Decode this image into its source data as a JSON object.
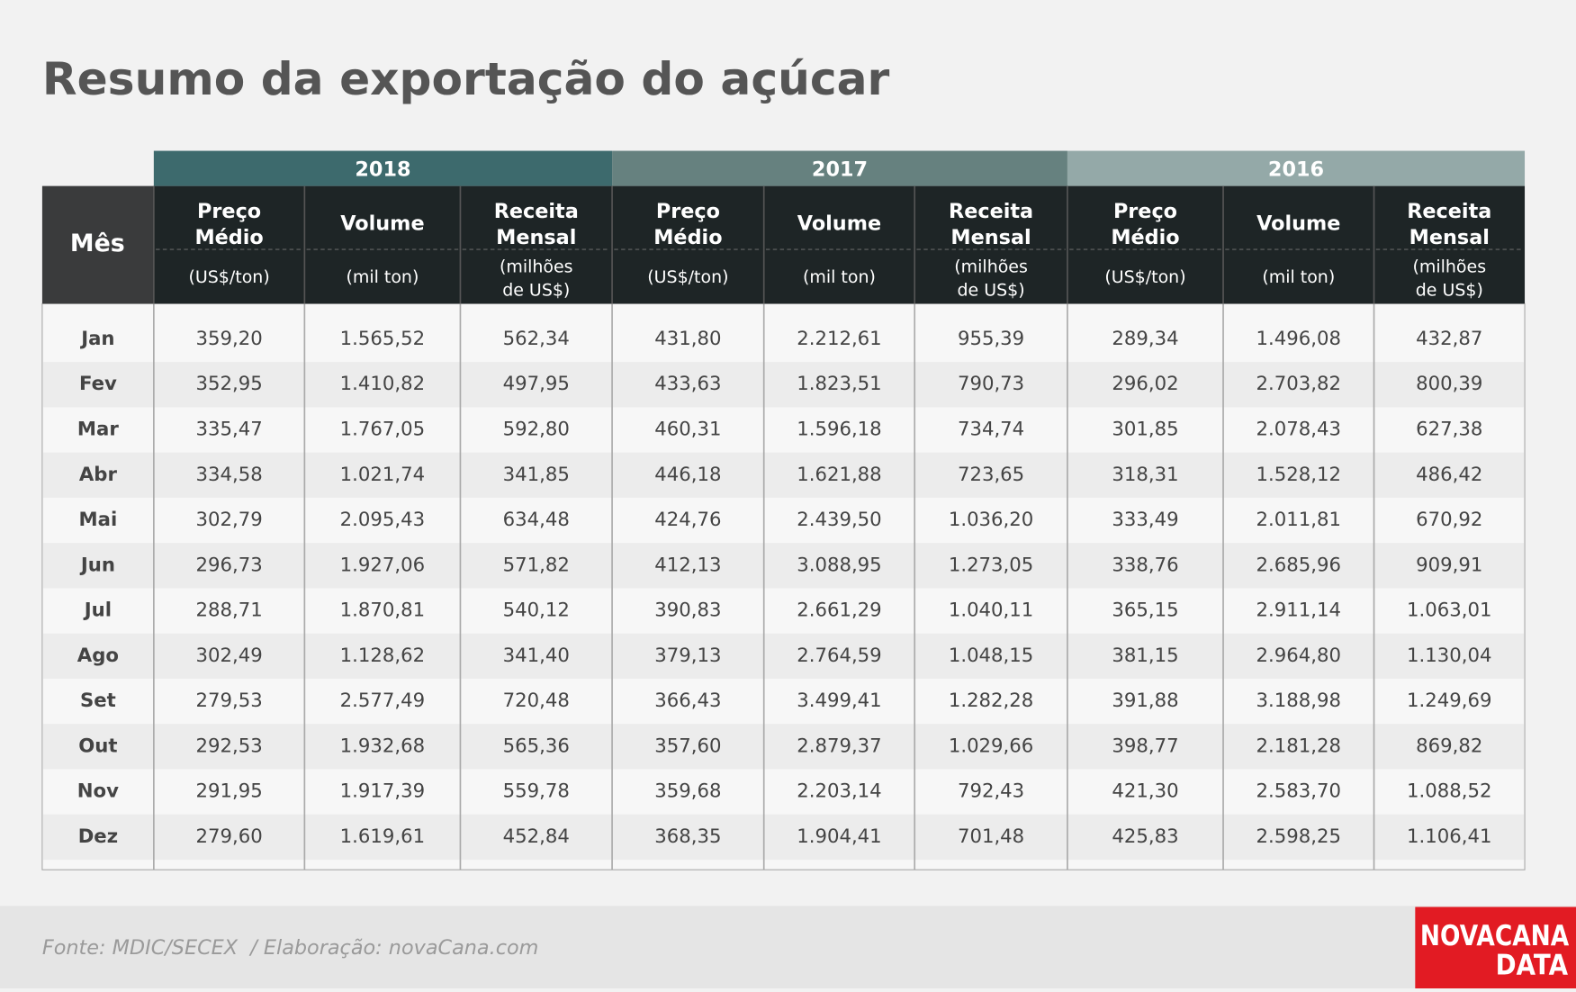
{
  "title": "Resumo da exportação do açúcar",
  "table": {
    "month_header": "Mês",
    "years": [
      "2018",
      "2017",
      "2016"
    ],
    "columns": [
      {
        "name": [
          "Preço",
          "Médio"
        ],
        "unit": [
          "(US$/ton)"
        ]
      },
      {
        "name": [
          "Volume"
        ],
        "unit": [
          "(mil ton)"
        ]
      },
      {
        "name": [
          "Receita",
          "Mensal"
        ],
        "unit": [
          "(milhões",
          "de US$)"
        ]
      }
    ],
    "rows": [
      [
        "Jan",
        "359,20",
        "1.565,52",
        "562,34",
        "431,80",
        "2.212,61",
        "955,39",
        "289,34",
        "1.496,08",
        "432,87"
      ],
      [
        "Fev",
        "352,95",
        "1.410,82",
        "497,95",
        "433,63",
        "1.823,51",
        "790,73",
        "296,02",
        "2.703,82",
        "800,39"
      ],
      [
        "Mar",
        "335,47",
        "1.767,05",
        "592,80",
        "460,31",
        "1.596,18",
        "734,74",
        "301,85",
        "2.078,43",
        "627,38"
      ],
      [
        "Abr",
        "334,58",
        "1.021,74",
        "341,85",
        "446,18",
        "1.621,88",
        "723,65",
        "318,31",
        "1.528,12",
        "486,42"
      ],
      [
        "Mai",
        "302,79",
        "2.095,43",
        "634,48",
        "424,76",
        "2.439,50",
        "1.036,20",
        "333,49",
        "2.011,81",
        "670,92"
      ],
      [
        "Jun",
        "296,73",
        "1.927,06",
        "571,82",
        "412,13",
        "3.088,95",
        "1.273,05",
        "338,76",
        "2.685,96",
        "909,91"
      ],
      [
        "Jul",
        "288,71",
        "1.870,81",
        "540,12",
        "390,83",
        "2.661,29",
        "1.040,11",
        "365,15",
        "2.911,14",
        "1.063,01"
      ],
      [
        "Ago",
        "302,49",
        "1.128,62",
        "341,40",
        "379,13",
        "2.764,59",
        "1.048,15",
        "381,15",
        "2.964,80",
        "1.130,04"
      ],
      [
        "Set",
        "279,53",
        "2.577,49",
        "720,48",
        "366,43",
        "3.499,41",
        "1.282,28",
        "391,88",
        "3.188,98",
        "1.249,69"
      ],
      [
        "Out",
        "292,53",
        "1.932,68",
        "565,36",
        "357,60",
        "2.879,37",
        "1.029,66",
        "398,77",
        "2.181,28",
        "869,82"
      ],
      [
        "Nov",
        "291,95",
        "1.917,39",
        "559,78",
        "359,68",
        "2.203,14",
        "792,43",
        "421,30",
        "2.583,70",
        "1.088,52"
      ],
      [
        "Dez",
        "279,60",
        "1.619,61",
        "452,84",
        "368,35",
        "1.904,41",
        "701,48",
        "425,83",
        "2.598,25",
        "1.106,41"
      ]
    ]
  },
  "footer": {
    "source": "Fonte: MDIC/SECEX  / Elaboração: novaCana.com",
    "logo": [
      "NOVACANA",
      "DATA"
    ]
  }
}
